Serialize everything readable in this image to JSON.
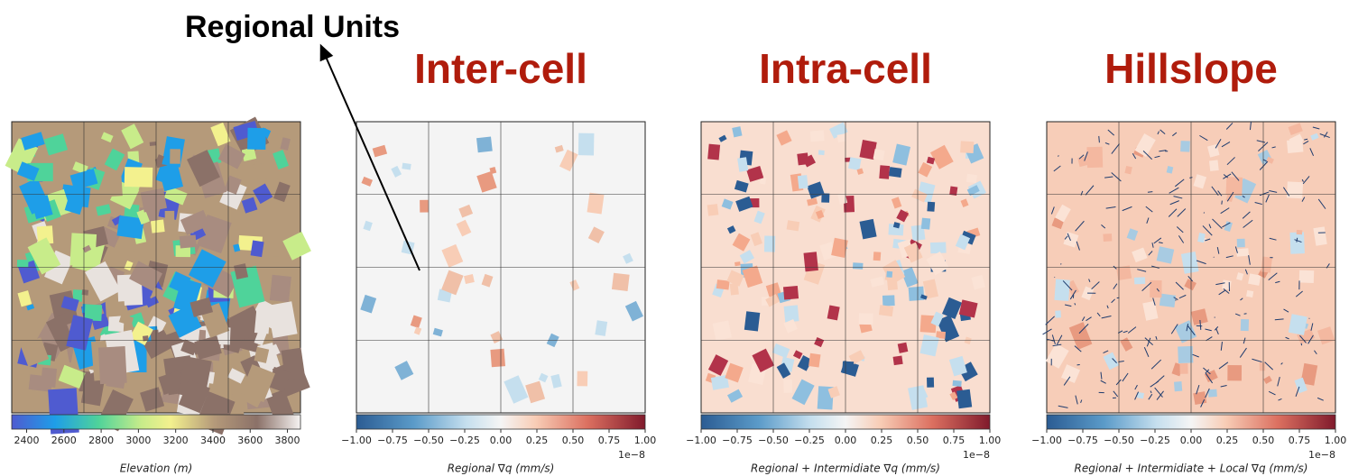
{
  "annotation": "Regional Units",
  "panels": [
    {
      "label": "Elevation (m)",
      "colorbar": {
        "lim": [
          2320,
          3870
        ],
        "ticks": [
          2400,
          2600,
          2800,
          3000,
          3200,
          3400,
          3600,
          3800
        ]
      }
    },
    {
      "title": "Inter-cell",
      "label": "Regional ∇q (mm/s)",
      "colorbar": {
        "lim": [
          -1,
          1
        ],
        "offset": "1e−8",
        "ticks": [
          {
            "value": -1,
            "label": "−1.00"
          },
          {
            "value": -0.75,
            "label": "−0.75"
          },
          {
            "value": -0.5,
            "label": "−0.50"
          },
          {
            "value": -0.25,
            "label": "−0.25"
          },
          {
            "value": 0,
            "label": "0.00"
          },
          {
            "value": 0.25,
            "label": "0.25"
          },
          {
            "value": 0.5,
            "label": "0.50"
          },
          {
            "value": 0.75,
            "label": "0.75"
          },
          {
            "value": 1,
            "label": "1.00"
          }
        ]
      }
    },
    {
      "title": "Intra-cell",
      "label": "Regional + Intermidiate ∇q (mm/s)",
      "colorbar": {
        "lim": [
          -1,
          1
        ],
        "offset": "1e−8",
        "ticks": [
          {
            "value": -1,
            "label": "−1.00"
          },
          {
            "value": -0.75,
            "label": "−0.75"
          },
          {
            "value": -0.5,
            "label": "−0.50"
          },
          {
            "value": -0.25,
            "label": "−0.25"
          },
          {
            "value": 0,
            "label": "0.00"
          },
          {
            "value": 0.25,
            "label": "0.25"
          },
          {
            "value": 0.5,
            "label": "0.50"
          },
          {
            "value": 0.75,
            "label": "0.75"
          },
          {
            "value": 1,
            "label": "1.00"
          }
        ]
      }
    },
    {
      "title": "Hillslope",
      "label": "Regional + Intermidiate + Local ∇q (mm/s)",
      "colorbar": {
        "lim": [
          -1,
          1
        ],
        "offset": "1e−8",
        "ticks": [
          {
            "value": -1,
            "label": "−1.00"
          },
          {
            "value": -0.75,
            "label": "−0.75"
          },
          {
            "value": -0.5,
            "label": "−0.50"
          },
          {
            "value": -0.25,
            "label": "−0.25"
          },
          {
            "value": 0,
            "label": "0.00"
          },
          {
            "value": 0.25,
            "label": "0.25"
          },
          {
            "value": 0.5,
            "label": "0.50"
          },
          {
            "value": 0.75,
            "label": "0.75"
          },
          {
            "value": 1,
            "label": "1.00"
          }
        ]
      }
    }
  ]
}
